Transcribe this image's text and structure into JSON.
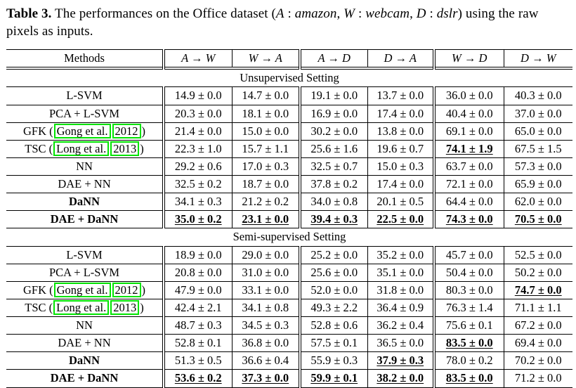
{
  "caption": {
    "label": "Table 3.",
    "body_parts": [
      {
        "t": " The performances on the Office dataset (",
        "style": "normal"
      },
      {
        "t": "A",
        "style": "italic"
      },
      {
        "t": " : ",
        "style": "normal"
      },
      {
        "t": "amazon",
        "style": "italic"
      },
      {
        "t": ", ",
        "style": "normal"
      },
      {
        "t": "W",
        "style": "italic"
      },
      {
        "t": " : ",
        "style": "normal"
      },
      {
        "t": "webcam",
        "style": "italic"
      },
      {
        "t": ", ",
        "style": "normal"
      },
      {
        "t": "D",
        "style": "italic"
      },
      {
        "t": " : ",
        "style": "normal"
      },
      {
        "t": "dslr",
        "style": "italic"
      },
      {
        "t": ") using the raw pixels as inputs.",
        "style": "normal"
      }
    ]
  },
  "colors": {
    "citation_box_green": "#00e400",
    "text": "#000000",
    "background": "#ffffff"
  },
  "table": {
    "methods_header": "Methods",
    "columns": [
      "A → W",
      "W → A",
      "A → D",
      "D → A",
      "W → D",
      "D → W"
    ],
    "sections": [
      {
        "title": "Unsupervised Setting",
        "rows": [
          {
            "method": "L-SVM",
            "values": [
              "14.9 ± 0.0",
              "14.7 ± 0.0",
              "19.1 ± 0.0",
              "13.7 ± 0.0",
              "36.0 ± 0.0",
              "40.3 ± 0.0"
            ]
          },
          {
            "method": "PCA + L-SVM",
            "values": [
              "20.3 ± 0.0",
              "18.1 ± 0.0",
              "16.9 ± 0.0",
              "17.4 ± 0.0",
              "40.4 ± 0.0",
              "37.0 ± 0.0"
            ]
          },
          {
            "method": "GFK",
            "citation": {
              "authors": "Gong et al.",
              "year": "2012"
            },
            "values": [
              "21.4 ± 0.0",
              "15.0 ± 0.0",
              "30.2 ± 0.0",
              "13.8 ± 0.0",
              "69.1 ± 0.0",
              "65.0 ± 0.0"
            ]
          },
          {
            "method": "TSC",
            "citation": {
              "authors": "Long et al.",
              "year": "2013"
            },
            "values": [
              "22.3 ± 1.0",
              "15.7 ± 1.1",
              "25.6 ± 1.6",
              "19.6 ± 0.7",
              {
                "text": "74.1 ± 1.9",
                "bold": true,
                "underline": true
              },
              "67.5 ± 1.5"
            ]
          },
          {
            "method": "NN",
            "values": [
              "29.2 ± 0.6",
              "17.0 ± 0.3",
              "32.5 ± 0.7",
              "15.0 ± 0.3",
              "63.7 ± 0.0",
              "57.3 ± 0.0"
            ]
          },
          {
            "method": "DAE + NN",
            "values": [
              "32.5 ± 0.2",
              "18.7 ± 0.0",
              "37.8 ± 0.2",
              "17.4 ± 0.0",
              "72.1 ± 0.0",
              "65.9 ± 0.0"
            ]
          },
          {
            "method": "DaNN",
            "bold": true,
            "values": [
              "34.1 ± 0.3",
              "21.2 ± 0.2",
              "34.0 ± 0.8",
              "20.1 ± 0.5",
              "64.4 ± 0.0",
              "62.0 ± 0.0"
            ]
          },
          {
            "method": "DAE + DaNN",
            "bold": true,
            "values": [
              {
                "text": "35.0 ± 0.2",
                "bold": true,
                "underline": true
              },
              {
                "text": "23.1 ± 0.0",
                "bold": true,
                "underline": true
              },
              {
                "text": "39.4 ± 0.3",
                "bold": true,
                "underline": true
              },
              {
                "text": "22.5 ± 0.0",
                "bold": true,
                "underline": true
              },
              {
                "text": "74.3 ± 0.0",
                "bold": true,
                "underline": true
              },
              {
                "text": "70.5 ± 0.0",
                "bold": true,
                "underline": true
              }
            ]
          }
        ]
      },
      {
        "title": "Semi-supervised Setting",
        "rows": [
          {
            "method": "L-SVM",
            "values": [
              "18.9 ± 0.0",
              "29.0 ± 0.0",
              "25.2 ± 0.0",
              "35.2 ± 0.0",
              "45.7 ± 0.0",
              "52.5 ± 0.0"
            ]
          },
          {
            "method": "PCA + L-SVM",
            "values": [
              "20.8 ± 0.0",
              "31.0 ± 0.0",
              "25.6 ± 0.0",
              "35.1 ± 0.0",
              "50.4 ± 0.0",
              "50.2 ± 0.0"
            ]
          },
          {
            "method": "GFK",
            "citation": {
              "authors": "Gong et al.",
              "year": "2012"
            },
            "values": [
              "47.9 ± 0.0",
              "33.1 ± 0.0",
              "52.0 ± 0.0",
              "31.8 ± 0.0",
              "80.3 ± 0.0",
              {
                "text": "74.7 ± 0.0",
                "bold": true,
                "underline": true
              }
            ]
          },
          {
            "method": "TSC",
            "citation": {
              "authors": "Long et al.",
              "year": "2013"
            },
            "values": [
              "42.4 ± 2.1",
              "34.1 ± 0.8",
              "49.3 ± 2.2",
              "36.4 ± 0.9",
              "76.3 ± 1.4",
              "71.1 ± 1.1"
            ]
          },
          {
            "method": "NN",
            "values": [
              "48.7 ± 0.3",
              "34.5 ± 0.3",
              "52.8 ± 0.6",
              "36.2 ± 0.4",
              "75.6 ± 0.1",
              "67.2 ± 0.0"
            ]
          },
          {
            "method": "DAE + NN",
            "values": [
              "52.8 ± 0.1",
              "36.8 ± 0.0",
              "57.5 ± 0.1",
              "36.5 ± 0.0",
              {
                "text": "83.5 ± 0.0",
                "bold": true,
                "underline": true
              },
              "69.4 ± 0.0"
            ]
          },
          {
            "method": "DaNN",
            "bold": true,
            "values": [
              "51.3 ± 0.5",
              "36.6 ± 0.4",
              "55.9 ± 0.3",
              {
                "text": "37.9 ± 0.3",
                "bold": true,
                "underline": true
              },
              "78.0 ± 0.2",
              "70.2 ± 0.0"
            ]
          },
          {
            "method": "DAE + DaNN",
            "bold": true,
            "values": [
              {
                "text": "53.6 ± 0.2",
                "bold": true,
                "underline": true
              },
              {
                "text": "37.3 ± 0.0",
                "bold": true,
                "underline": true
              },
              {
                "text": "59.9 ± 0.1",
                "bold": true,
                "underline": true
              },
              {
                "text": "38.2 ± 0.0",
                "bold": true,
                "underline": true
              },
              {
                "text": "83.5 ± 0.0",
                "bold": true,
                "underline": true
              },
              "71.2 ± 0.0"
            ]
          }
        ]
      }
    ]
  }
}
